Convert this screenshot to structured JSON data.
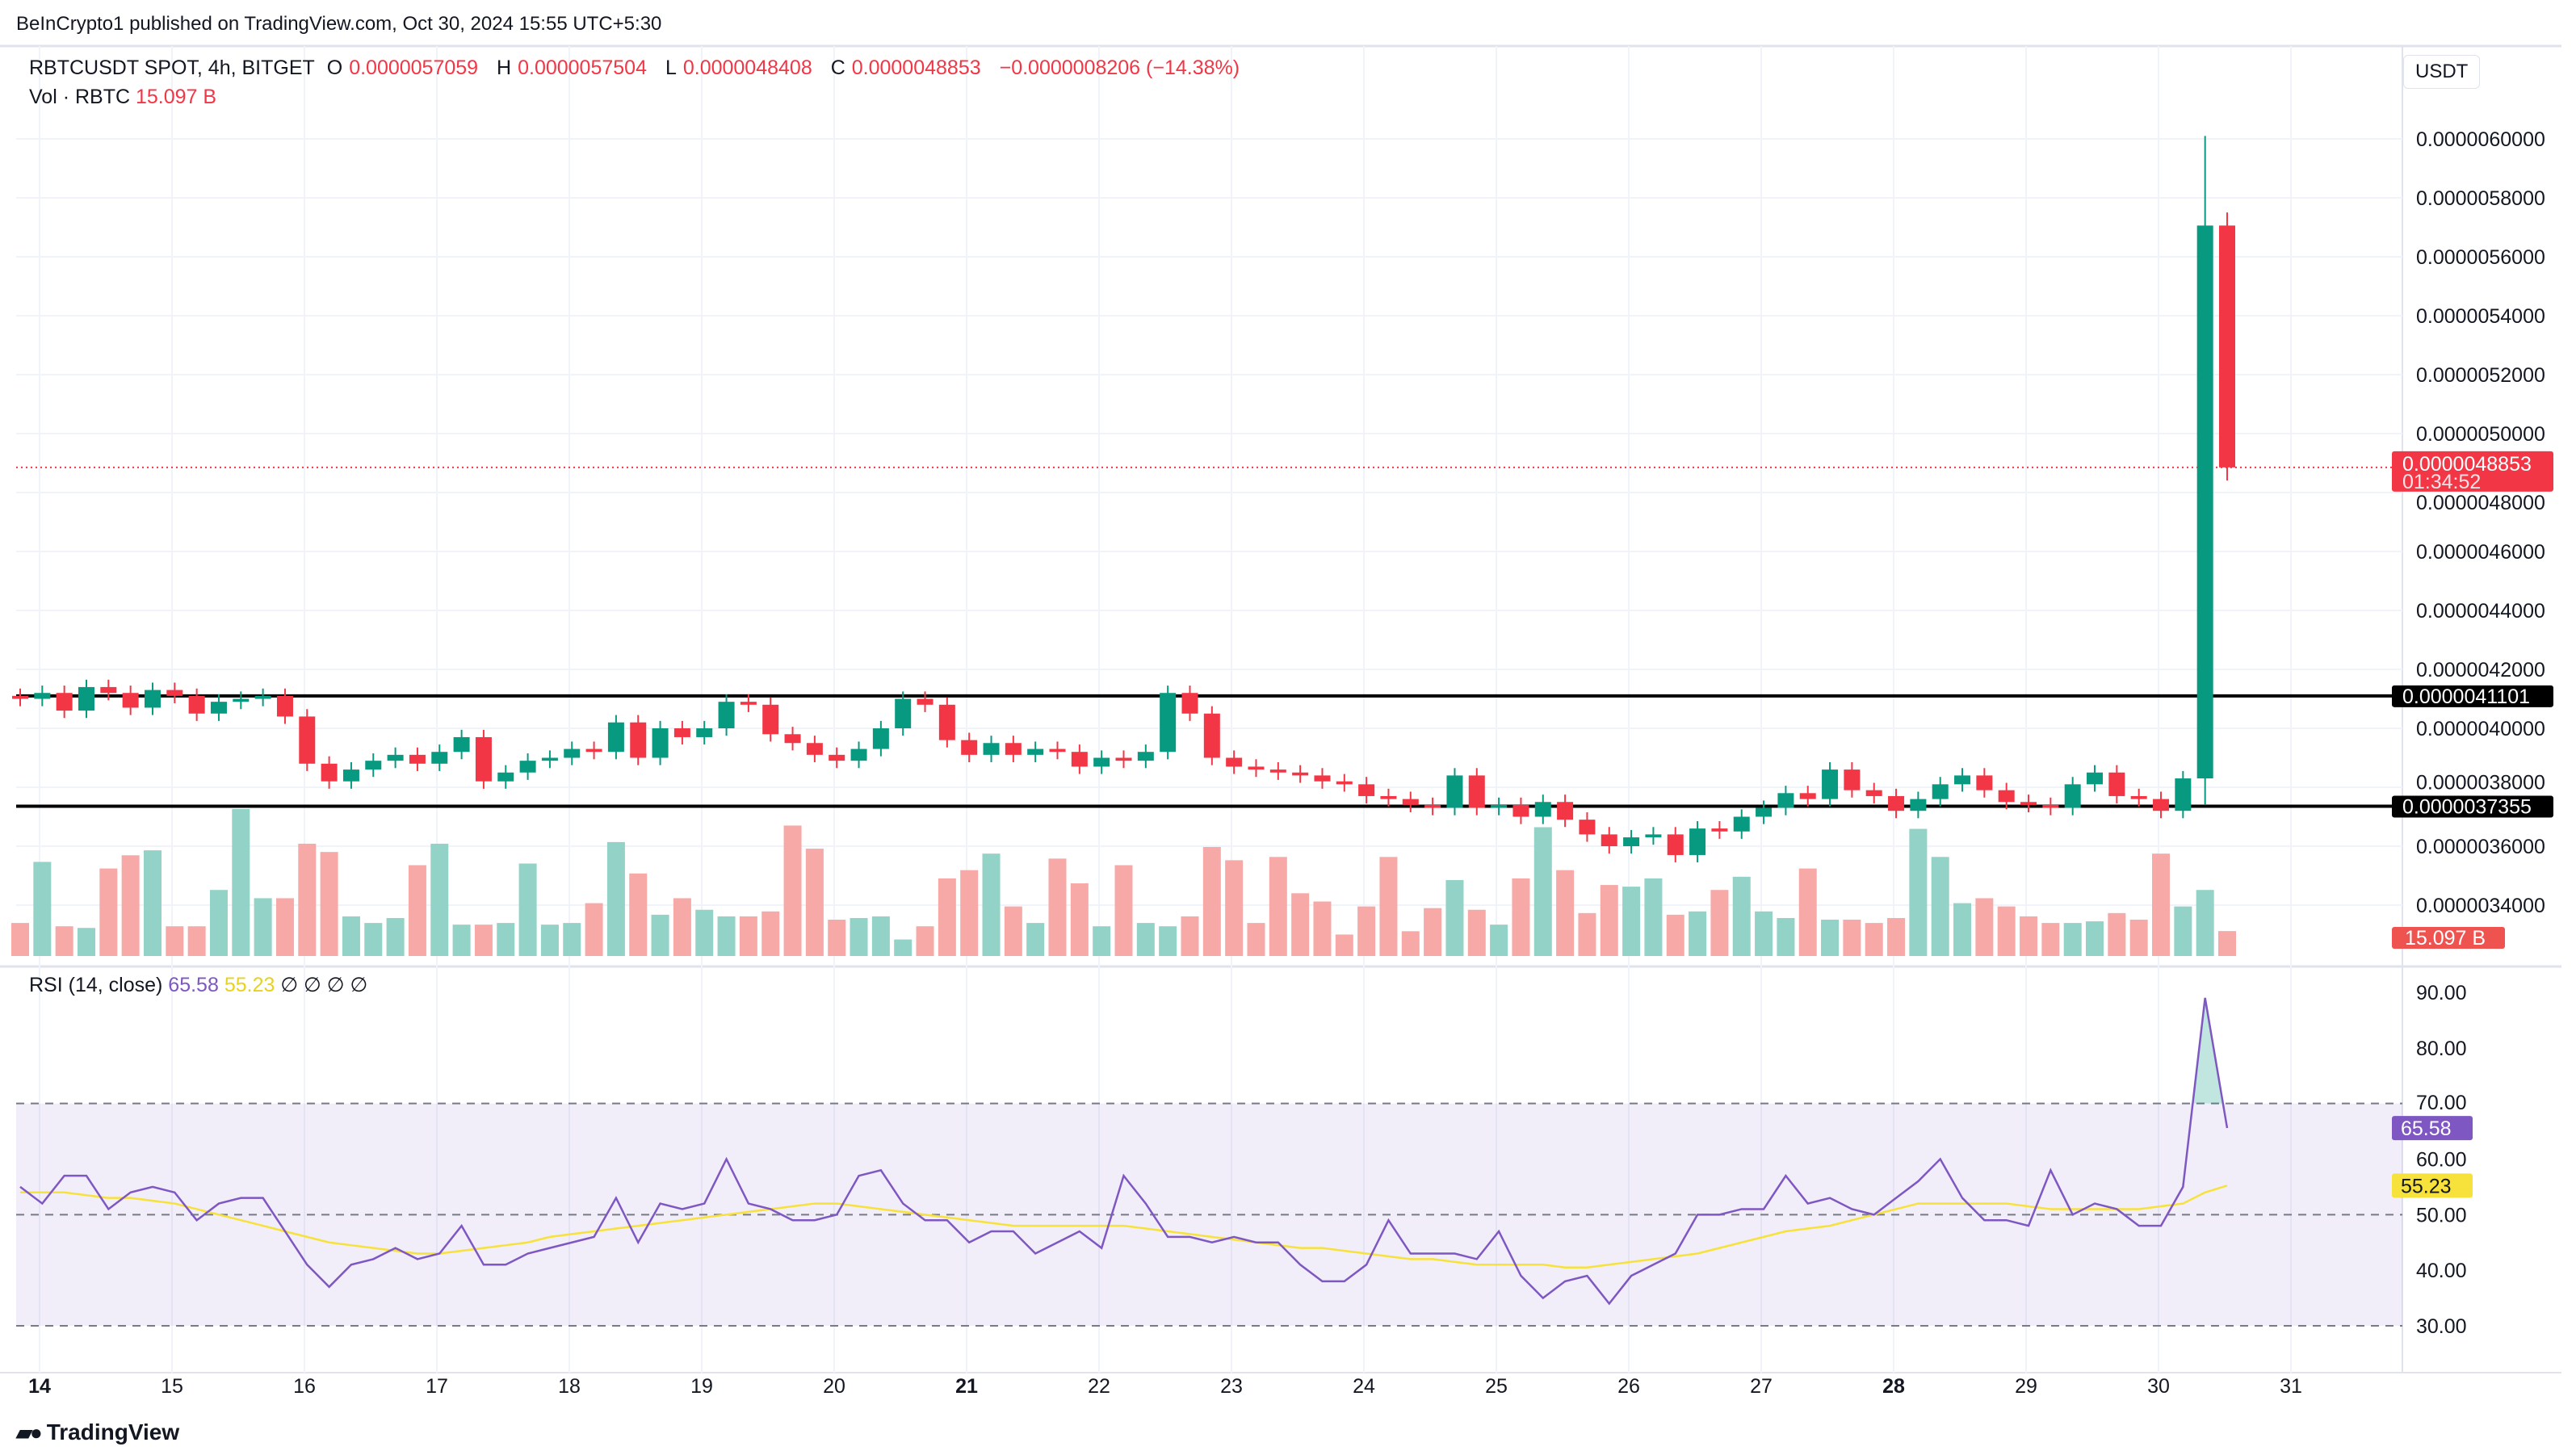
{
  "published": "BeInCrypto1 published on TradingView.com, Oct 30, 2024 15:55 UTC+5:30",
  "legend": {
    "symbol": "RBTCUSDT SPOT, 4h, BITGET",
    "o_label": "O",
    "o": "0.0000057059",
    "h_label": "H",
    "h": "0.0000057504",
    "l_label": "L",
    "l": "0.0000048408",
    "c_label": "C",
    "c": "0.0000048853",
    "change": "−0.0000008206 (−14.38%)"
  },
  "volume_legend": {
    "label": "Vol · RBTC",
    "value": "15.097 B"
  },
  "rsi_legend": {
    "label": "RSI (14, close)",
    "rsi": "65.58",
    "ma": "55.23",
    "extras": "∅ ∅ ∅ ∅"
  },
  "currency": "USDT",
  "logo": "TradingView",
  "colors": {
    "up": "#089981",
    "down": "#f23645",
    "up_vol": "#92d2c7",
    "down_vol": "#f7a9a7",
    "rsi": "#7e57c2",
    "rsi_ma": "#f7e13b",
    "level_line": "#000000"
  },
  "chart_data": {
    "type": "candlestick",
    "price_unit": "1e-10 USDT",
    "price_ticks": [
      "0.0000034000",
      "0.0000036000",
      "0.0000038000",
      "0.0000040000",
      "0.0000042000",
      "0.0000044000",
      "0.0000046000",
      "0.0000048000",
      "0.0000050000",
      "0.0000052000",
      "0.0000054000",
      "0.0000056000",
      "0.0000058000",
      "0.0000060000"
    ],
    "ylim": [
      33400,
      61000
    ],
    "x_labels": [
      "14",
      "15",
      "16",
      "17",
      "18",
      "19",
      "20",
      "21",
      "22",
      "23",
      "24",
      "25",
      "26",
      "27",
      "28",
      "29",
      "30",
      "31"
    ],
    "bold_x_labels": [
      "14",
      "21",
      "28"
    ],
    "first_open": 41100,
    "close": [
      41000,
      41200,
      40600,
      41400,
      41200,
      40700,
      41300,
      41100,
      40500,
      40900,
      41000,
      41100,
      40400,
      38800,
      38200,
      38600,
      38900,
      39100,
      38800,
      39200,
      39700,
      38200,
      38500,
      38900,
      39000,
      39300,
      39200,
      40200,
      39000,
      40000,
      39700,
      40000,
      40900,
      40800,
      39800,
      39500,
      39100,
      38900,
      39300,
      40000,
      41000,
      40800,
      39600,
      39100,
      39500,
      39100,
      39300,
      39200,
      38700,
      39000,
      38900,
      39200,
      41200,
      40500,
      39000,
      38700,
      38600,
      38500,
      38400,
      38200,
      38100,
      37700,
      37600,
      37400,
      37300,
      38400,
      37300,
      37400,
      37000,
      37500,
      36900,
      36400,
      36000,
      36300,
      36400,
      35700,
      36600,
      36500,
      37000,
      37300,
      37800,
      37600,
      38600,
      37900,
      37700,
      37200,
      37600,
      38100,
      38400,
      37900,
      37500,
      37400,
      37300,
      38100,
      38500,
      37700,
      37600,
      37200,
      38300,
      57059,
      48853
    ],
    "special_high_low": {
      "99": [
        60100,
        37400
      ],
      "100": [
        57504,
        48408
      ]
    },
    "volume_B": [
      20,
      57,
      18,
      17,
      53,
      61,
      64,
      18,
      18,
      40,
      89,
      35,
      35,
      68,
      63,
      24,
      20,
      23,
      55,
      68,
      19,
      19,
      20,
      56,
      19,
      20,
      32,
      69,
      50,
      25,
      35,
      28,
      24,
      24,
      27,
      79,
      65,
      22,
      23,
      24,
      10,
      18,
      47,
      52,
      62,
      30,
      20,
      59,
      44,
      18,
      55,
      20,
      18,
      24,
      66,
      58,
      20,
      60,
      38,
      33,
      13,
      30,
      60,
      15,
      29,
      46,
      28,
      19,
      47,
      78,
      52,
      26,
      43,
      42,
      47,
      25,
      27,
      40,
      48,
      27,
      23,
      53,
      22,
      22,
      20,
      23,
      77,
      60,
      32,
      35,
      30,
      24,
      20,
      20,
      21,
      26,
      22,
      62,
      30,
      40,
      15.097
    ],
    "volume_current": "15.097 B",
    "level_lines": [
      "0.0000041101",
      "0.0000037355"
    ],
    "current_price": "0.0000048853",
    "countdown": "01:34:52",
    "rsi": {
      "ticks": [
        "30.00",
        "40.00",
        "50.00",
        "60.00",
        "70.00",
        "80.00",
        "90.00"
      ],
      "ylim": [
        28,
        92
      ],
      "bands": [
        30,
        50,
        70
      ],
      "values": [
        55,
        52,
        57,
        57,
        51,
        54,
        55,
        54,
        49,
        52,
        53,
        53,
        47,
        41,
        37,
        41,
        42,
        44,
        42,
        43,
        48,
        41,
        41,
        43,
        44,
        45,
        46,
        53,
        45,
        52,
        51,
        52,
        60,
        52,
        51,
        49,
        49,
        50,
        57,
        58,
        52,
        49,
        49,
        45,
        47,
        47,
        43,
        45,
        47,
        44,
        57,
        52,
        46,
        46,
        45,
        46,
        45,
        45,
        41,
        38,
        38,
        41,
        49,
        43,
        43,
        43,
        42,
        47,
        39,
        35,
        38,
        39,
        34,
        39,
        41,
        43,
        50,
        50,
        51,
        51,
        57,
        52,
        53,
        51,
        50,
        53,
        56,
        60,
        53,
        49,
        49,
        48,
        58,
        50,
        52,
        51,
        48,
        48,
        55,
        89,
        65.58
      ],
      "ma_values": [
        54,
        54,
        54,
        53.5,
        53,
        53,
        52.5,
        52,
        51,
        50,
        49,
        48,
        47,
        46,
        45,
        44.5,
        44,
        43.5,
        43,
        43,
        43.5,
        44,
        44.5,
        45,
        46,
        46.5,
        47,
        47.5,
        48,
        48.5,
        49,
        49.5,
        50,
        50.5,
        51,
        51.5,
        52,
        52,
        51.5,
        51,
        50.5,
        50,
        49.5,
        49,
        48.5,
        48,
        48,
        48,
        48,
        48,
        48,
        47.5,
        47,
        46.5,
        46,
        45.5,
        45,
        44.5,
        44,
        44,
        43.5,
        43,
        42.5,
        42,
        42,
        41.5,
        41,
        41,
        41,
        41,
        40.5,
        40.5,
        41,
        41.5,
        42,
        42.5,
        43,
        44,
        45,
        46,
        47,
        47.5,
        48,
        49,
        50,
        51,
        52,
        52,
        52,
        52,
        52,
        51.5,
        51,
        51,
        51,
        51,
        51,
        51.5,
        52,
        54,
        55.23
      ],
      "current_rsi": "65.58",
      "current_ma": "55.23"
    }
  }
}
